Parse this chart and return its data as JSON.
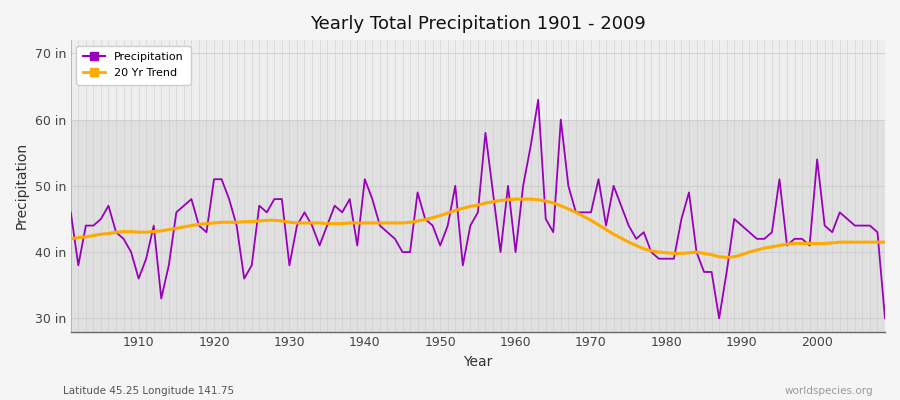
{
  "title": "Yearly Total Precipitation 1901 - 2009",
  "xlabel": "Year",
  "ylabel": "Precipitation",
  "subtitle_left": "Latitude 45.25 Longitude 141.75",
  "subtitle_right": "worldspecies.org",
  "ylim": [
    28,
    72
  ],
  "yticks": [
    30,
    40,
    50,
    60,
    70
  ],
  "ytick_labels": [
    "30 in",
    "40 in",
    "50 in",
    "60 in",
    "70 in"
  ],
  "bg_color_lower": "#e0e0e0",
  "bg_color_upper": "#eeeeee",
  "fig_color": "#f5f5f5",
  "grid_color": "#ffffff",
  "precip_color": "#9900bb",
  "trend_color": "#ffaa00",
  "years": [
    1901,
    1902,
    1903,
    1904,
    1905,
    1906,
    1907,
    1908,
    1909,
    1910,
    1911,
    1912,
    1913,
    1914,
    1915,
    1916,
    1917,
    1918,
    1919,
    1920,
    1921,
    1922,
    1923,
    1924,
    1925,
    1926,
    1927,
    1928,
    1929,
    1930,
    1931,
    1932,
    1933,
    1934,
    1935,
    1936,
    1937,
    1938,
    1939,
    1940,
    1941,
    1942,
    1943,
    1944,
    1945,
    1946,
    1947,
    1948,
    1949,
    1950,
    1951,
    1952,
    1953,
    1954,
    1955,
    1956,
    1957,
    1958,
    1959,
    1960,
    1961,
    1962,
    1963,
    1964,
    1965,
    1966,
    1967,
    1968,
    1969,
    1970,
    1971,
    1972,
    1973,
    1974,
    1975,
    1976,
    1977,
    1978,
    1979,
    1980,
    1981,
    1982,
    1983,
    1984,
    1985,
    1986,
    1987,
    1988,
    1989,
    1990,
    1991,
    1992,
    1993,
    1994,
    1995,
    1996,
    1997,
    1998,
    1999,
    2000,
    2001,
    2002,
    2003,
    2004,
    2005,
    2006,
    2007,
    2008,
    2009
  ],
  "precip": [
    46,
    38,
    44,
    44,
    45,
    47,
    43,
    42,
    40,
    36,
    39,
    44,
    33,
    38,
    46,
    47,
    48,
    44,
    43,
    51,
    51,
    48,
    44,
    36,
    38,
    47,
    46,
    48,
    48,
    38,
    44,
    46,
    44,
    41,
    44,
    47,
    46,
    48,
    41,
    51,
    48,
    44,
    43,
    42,
    40,
    40,
    49,
    45,
    44,
    41,
    44,
    50,
    38,
    44,
    46,
    58,
    49,
    40,
    50,
    40,
    50,
    56,
    63,
    45,
    43,
    60,
    50,
    46,
    46,
    46,
    51,
    44,
    50,
    47,
    44,
    42,
    43,
    40,
    39,
    39,
    39,
    45,
    49,
    40,
    37,
    37,
    30,
    37,
    45,
    44,
    43,
    42,
    42,
    43,
    51,
    41,
    42,
    42,
    41,
    54,
    44,
    43,
    46,
    45,
    44,
    44,
    44,
    43,
    30
  ],
  "trend": [
    42.0,
    42.2,
    42.3,
    42.5,
    42.7,
    42.8,
    43.0,
    43.1,
    43.1,
    43.0,
    43.0,
    43.1,
    43.2,
    43.4,
    43.6,
    43.8,
    44.0,
    44.2,
    44.3,
    44.4,
    44.5,
    44.5,
    44.5,
    44.6,
    44.6,
    44.7,
    44.8,
    44.8,
    44.7,
    44.5,
    44.4,
    44.4,
    44.4,
    44.4,
    44.3,
    44.3,
    44.3,
    44.4,
    44.4,
    44.4,
    44.4,
    44.4,
    44.4,
    44.4,
    44.4,
    44.5,
    44.7,
    44.9,
    45.2,
    45.5,
    45.9,
    46.3,
    46.6,
    46.9,
    47.1,
    47.4,
    47.6,
    47.8,
    47.9,
    48.0,
    48.0,
    48.0,
    47.9,
    47.7,
    47.4,
    47.0,
    46.5,
    46.0,
    45.4,
    44.8,
    44.1,
    43.4,
    42.7,
    42.1,
    41.5,
    41.0,
    40.5,
    40.2,
    40.0,
    39.9,
    39.8,
    39.8,
    39.9,
    40.0,
    39.8,
    39.6,
    39.3,
    39.2,
    39.3,
    39.6,
    40.0,
    40.3,
    40.6,
    40.8,
    41.0,
    41.2,
    41.3,
    41.3,
    41.3,
    41.3,
    41.3,
    41.4,
    41.5,
    41.5,
    41.5,
    41.5,
    41.5,
    41.5,
    41.5
  ]
}
